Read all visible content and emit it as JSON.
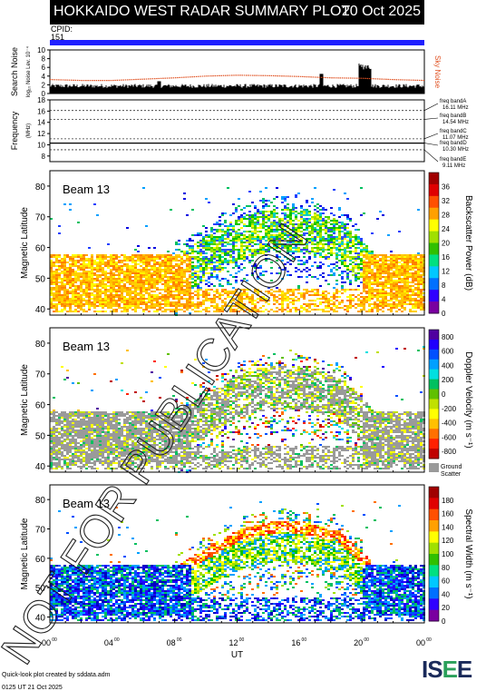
{
  "header": {
    "title": "HOKKAIDO WEST RADAR SUMMARY PLOT",
    "date": "20 Oct 2025"
  },
  "cpid": {
    "label": "CPID:",
    "value": "151"
  },
  "noise_panel": {
    "ylabel": "Search Noise",
    "ylabel_sub": "log₁₀ Noise Lev.  10⁻⁴",
    "right_label": "Sky Noise",
    "yticks": [
      "0",
      "2",
      "4",
      "6",
      "8",
      "10"
    ]
  },
  "freq_panel": {
    "ylabel": "Frequency",
    "ylabel_unit": "(MHz)",
    "yticks": [
      "8",
      "10",
      "12",
      "14",
      "16",
      "18"
    ],
    "bands": [
      {
        "name": "freq bandA",
        "freq": "16.11 MHz"
      },
      {
        "name": "freq bandB",
        "freq": "14.54 MHz"
      },
      {
        "name": "freq bandC",
        "freq": "11.07 MHz"
      },
      {
        "name": "freq bandD",
        "freq": "10.30 MHz"
      },
      {
        "name": "freq bandE",
        "freq": "9.11 MHz"
      }
    ]
  },
  "panels": [
    {
      "beam": "Beam 13",
      "ylabel": "Magnetic Latitude",
      "yticks": [
        "40",
        "50",
        "60",
        "70",
        "80"
      ],
      "colorbar_label": "Backscatter Power (dB)",
      "colorbar_ticks": [
        "0",
        "4",
        "8",
        "12",
        "16",
        "20",
        "24",
        "28",
        "32",
        "36"
      ]
    },
    {
      "beam": "Beam 13",
      "ylabel": "Magnetic Latitude",
      "yticks": [
        "40",
        "50",
        "60",
        "70",
        "80"
      ],
      "colorbar_label": "Doppler Velocity (m s⁻¹)",
      "colorbar_ticks": [
        "800",
        "600",
        "400",
        "200",
        "0",
        "-200",
        "-400",
        "-600",
        "-800"
      ],
      "ground_label_1": "Ground",
      "ground_label_2": "Scatter"
    },
    {
      "beam": "Beam 13",
      "ylabel": "Magnetic Latitude",
      "yticks": [
        "40",
        "50",
        "60",
        "70",
        "80"
      ],
      "colorbar_label": "Spectral Width (m s⁻¹)",
      "colorbar_ticks": [
        "0",
        "20",
        "40",
        "60",
        "80",
        "100",
        "120",
        "140",
        "160",
        "180"
      ]
    }
  ],
  "xaxis": {
    "label": "UT",
    "ticks": [
      "00",
      "04",
      "08",
      "12",
      "16",
      "20",
      "00"
    ],
    "tick_sup": "00"
  },
  "footer": {
    "line1": "Quick-look plot created by sddata.adm",
    "line2": "0125 UT 21 Oct 2025"
  },
  "logo": {
    "text": "ISEE"
  },
  "watermark": "NOT FOR PUBLICATION",
  "colors": {
    "header_bg": "#000000",
    "cpid_bar": "#2020ff",
    "noise_line": "#e05020",
    "ground_scatter": "#9a9a9a"
  },
  "chart_data": [
    {
      "type": "line",
      "title": "Search Noise",
      "xlabel": "UT",
      "ylabel": "Search Noise",
      "x": [
        0,
        2,
        4,
        6,
        8,
        10,
        12,
        14,
        16,
        18,
        20,
        22,
        24
      ],
      "series": [
        {
          "name": "Sky Noise",
          "values": [
            3.2,
            3.0,
            3.0,
            3.3,
            3.6,
            4.0,
            4.2,
            4.1,
            3.9,
            3.6,
            3.5,
            3.2,
            3.0
          ]
        }
      ],
      "ylim": [
        0,
        10
      ],
      "xlim": [
        0,
        24
      ]
    },
    {
      "type": "line",
      "title": "Frequency",
      "xlabel": "UT",
      "ylabel": "Frequency (MHz)",
      "x": [
        0,
        24
      ],
      "series": [
        {
          "name": "freq bandA",
          "values": [
            16.11,
            16.11
          ]
        },
        {
          "name": "freq bandB",
          "values": [
            14.54,
            14.54
          ]
        },
        {
          "name": "freq bandC",
          "values": [
            11.07,
            11.07
          ]
        },
        {
          "name": "freq bandD",
          "values": [
            10.3,
            10.3
          ]
        },
        {
          "name": "freq bandE",
          "values": [
            9.11,
            9.11
          ]
        }
      ],
      "ylim": [
        7,
        18
      ],
      "xlim": [
        0,
        24
      ]
    },
    {
      "type": "heatmap",
      "title": "Backscatter Power (dB)",
      "xlabel": "UT",
      "ylabel": "Magnetic Latitude",
      "xlim": [
        0,
        24
      ],
      "ylim": [
        38,
        85
      ],
      "zlim": [
        0,
        36
      ]
    },
    {
      "type": "heatmap",
      "title": "Doppler Velocity (m s⁻¹)",
      "xlabel": "UT",
      "ylabel": "Magnetic Latitude",
      "xlim": [
        0,
        24
      ],
      "ylim": [
        38,
        85
      ],
      "zlim": [
        -800,
        800
      ]
    },
    {
      "type": "heatmap",
      "title": "Spectral Width (m s⁻¹)",
      "xlabel": "UT",
      "ylabel": "Magnetic Latitude",
      "xlim": [
        0,
        24
      ],
      "ylim": [
        38,
        85
      ],
      "zlim": [
        0,
        180
      ]
    }
  ]
}
